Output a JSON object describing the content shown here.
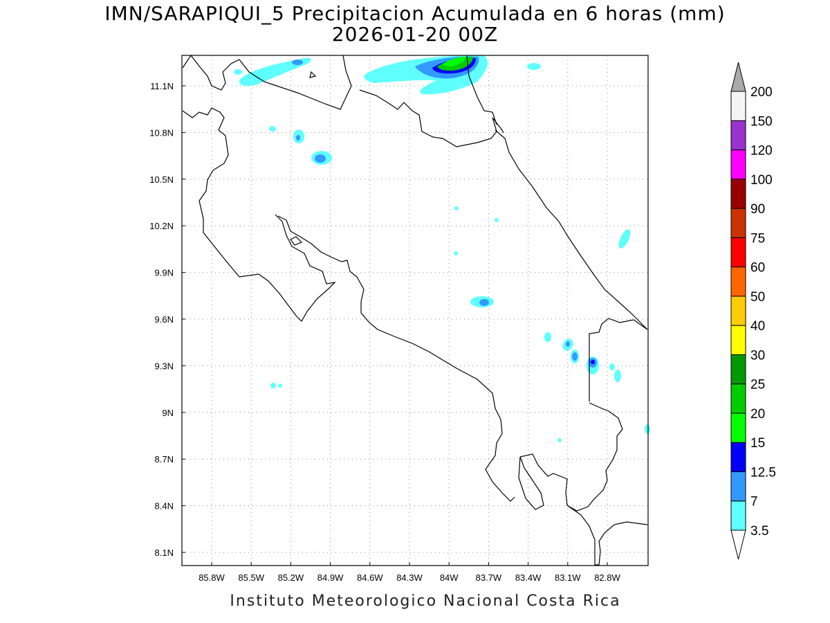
{
  "title": {
    "line1": "IMN/SARAPIQUI_5 Precipitacion Acumulada en 6 horas (mm)",
    "line2": "2026-01-20 00Z"
  },
  "footer": "Instituto Meteorologico Nacional Costa Rica",
  "map": {
    "x_ticks": [
      "85.8W",
      "85.5W",
      "85.2W",
      "84.9W",
      "84.6W",
      "84.3W",
      "84W",
      "83.7W",
      "83.4W",
      "83.1W",
      "82.8W"
    ],
    "y_ticks": [
      "11.1N",
      "10.8N",
      "10.5N",
      "10.2N",
      "9.9N",
      "9.6N",
      "9.3N",
      "9N",
      "8.7N",
      "8.4N",
      "8.1N"
    ],
    "grid": true
  },
  "colorbar": {
    "levels": [
      "3.5",
      "7",
      "12.5",
      "15",
      "20",
      "25",
      "30",
      "40",
      "50",
      "60",
      "75",
      "90",
      "100",
      "120",
      "150",
      "200"
    ],
    "colors": [
      "#5fffff",
      "#3399ff",
      "#0000ff",
      "#00ff00",
      "#00cc00",
      "#009900",
      "#ffff00",
      "#ffcc00",
      "#ff6600",
      "#ff0000",
      "#cc3300",
      "#990000",
      "#ff00ff",
      "#9933cc",
      "#f5f5f5",
      "#a9a9a9"
    ]
  }
}
